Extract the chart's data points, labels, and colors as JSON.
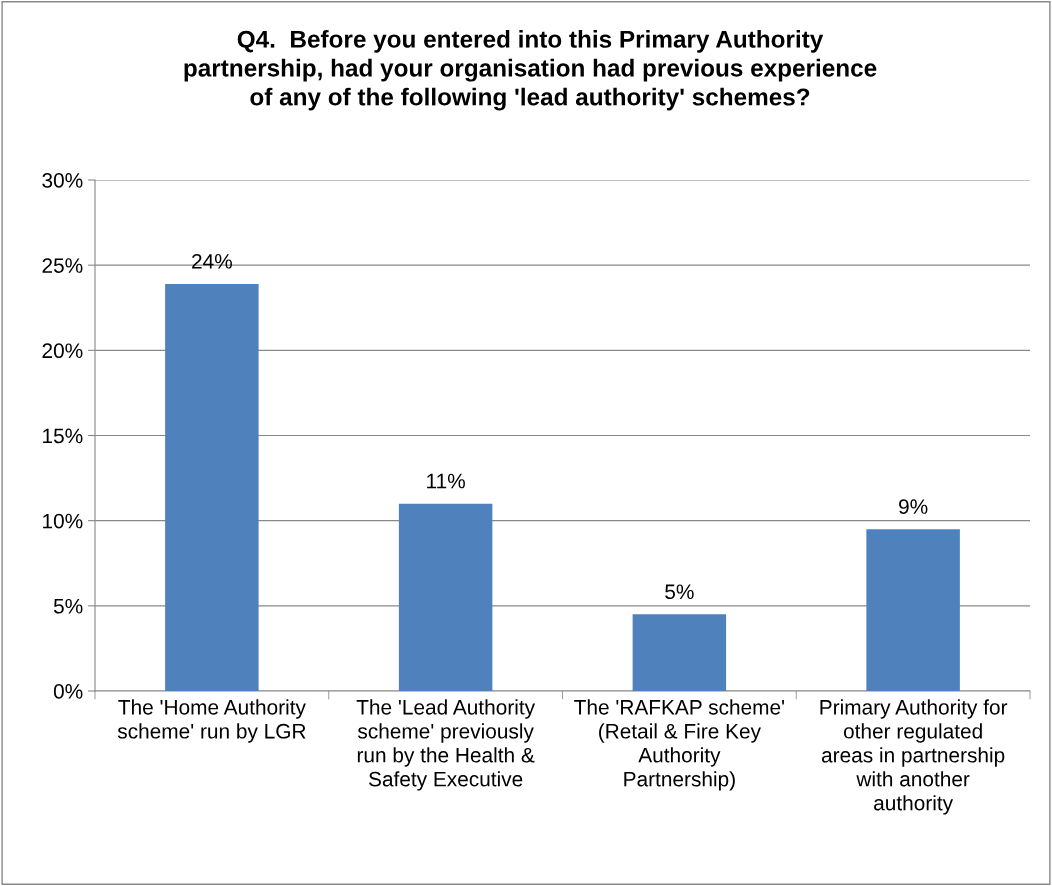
{
  "chart_data": {
    "type": "bar",
    "title": "Q4.  Before you entered into this Primary Authority\npartnership, had your organisation had previous experience\nof any of the following 'lead authority' schemes?",
    "categories": [
      "The 'Home Authority\nscheme' run by LGR",
      "The 'Lead Authority\nscheme' previously\nrun by the Health &\nSafety Executive",
      "The 'RAFKAP scheme'\n(Retail & Fire Key\nAuthority\nPartnership)",
      "Primary Authority for\nother regulated\nareas in partnership\nwith another\nauthority"
    ],
    "values": [
      23.9,
      11.0,
      4.5,
      9.5
    ],
    "value_labels": [
      "24%",
      "11%",
      "5%",
      "9%"
    ],
    "color": "#4f81bd",
    "ylim": [
      0,
      30
    ],
    "yticks": [
      {
        "value": 0,
        "label": "0%"
      },
      {
        "value": 5,
        "label": "5%"
      },
      {
        "value": 10,
        "label": "10%"
      },
      {
        "value": 15,
        "label": "15%"
      },
      {
        "value": 20,
        "label": "20%"
      },
      {
        "value": 25,
        "label": "25%"
      },
      {
        "value": 30,
        "label": "30%"
      }
    ],
    "grid": "y",
    "legend": false
  }
}
